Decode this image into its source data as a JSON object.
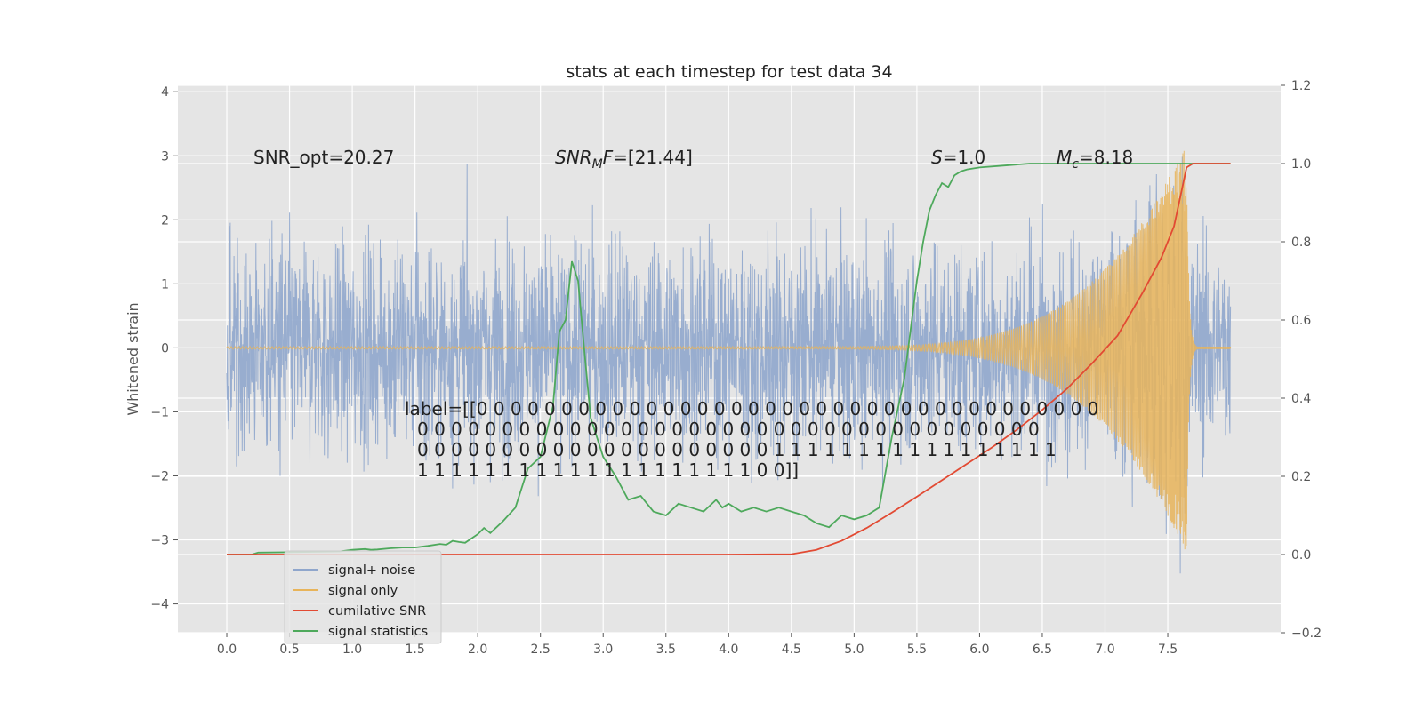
{
  "chart_data": {
    "type": "line",
    "title": "stats at each timestep for test data 34",
    "xlabel": "",
    "ylabel": "Whitened strain",
    "y2label": "",
    "xlim": [
      -0.39,
      8.4
    ],
    "ylim": [
      -4.45,
      4.1
    ],
    "y2lim": [
      -0.2,
      1.2
    ],
    "x_ticks": [
      "0.0",
      "0.5",
      "1.0",
      "1.5",
      "2.0",
      "2.5",
      "3.0",
      "3.5",
      "4.0",
      "4.5",
      "5.0",
      "5.5",
      "6.0",
      "6.5",
      "7.0",
      "7.5"
    ],
    "y_ticks": [
      "−4",
      "−3",
      "−2",
      "−1",
      "0",
      "1",
      "2",
      "3",
      "4"
    ],
    "y2_ticks": [
      "−0.2",
      "0.0",
      "0.2",
      "0.4",
      "0.6",
      "0.8",
      "1.0",
      "1.2"
    ],
    "grid": true,
    "legend_position": "lower-left",
    "annotations": {
      "snr_opt": "SNR_opt=20.27",
      "snr_mf_label": "SNR",
      "snr_mf_sub": "M",
      "snr_mf_label2": "F",
      "snr_mf_value": "=[21.44]",
      "s_label": "S",
      "s_value": "=1.0",
      "mc_label": "M",
      "mc_sub": "c",
      "mc_value": "=8.18",
      "label_lines": [
        "label=[[0 0 0 0 0 0 0 0 0 0 0 0 0 0 0 0 0 0 0 0 0 0 0 0 0 0 0 0 0 0 0 0 0 0 0 0 0",
        "0 0 0 0 0 0 0 0 0 0 0 0 0 0 0 0 0 0 0 0 0 0 0 0 0 0 0 0 0 0 0 0 0 0 0 0 0",
        "0 0 0 0 0 0 0 0 0 0 0 0 0 0 0 0 0 0 0 0 0 1 1 1 1 1 1 1 1 1 1 1 1 1 1 1 1 1",
        "1 1 1 1 1 1 1 1 1 1 1 1 1 1 1 1 1 1 1 1 0 0]]"
      ]
    },
    "series": [
      {
        "name": "signal+ noise",
        "color": "#8fa6cc",
        "axis": "left",
        "description_values": "whitened noisy strain, amplitude roughly within ±3.7"
      },
      {
        "name": "signal only",
        "color": "#e8b45a",
        "axis": "left",
        "chirp": {
          "start_x": 4.5,
          "merger_x": 7.65,
          "peak_amplitude": 3.2
        }
      },
      {
        "name": "cumilative SNR",
        "color": "#e24a33",
        "axis": "right",
        "x": [
          0.0,
          0.5,
          1.0,
          1.5,
          2.0,
          2.5,
          3.0,
          3.5,
          4.0,
          4.5,
          4.7,
          4.9,
          5.1,
          5.3,
          5.5,
          5.7,
          5.9,
          6.1,
          6.3,
          6.5,
          6.7,
          6.9,
          7.1,
          7.3,
          7.45,
          7.55,
          7.65,
          7.7,
          8.0
        ],
        "values": [
          0.0,
          0.0,
          0.0,
          0.0,
          0.0,
          0.0,
          0.0,
          0.0,
          0.0,
          0.001,
          0.012,
          0.035,
          0.068,
          0.107,
          0.148,
          0.19,
          0.232,
          0.274,
          0.32,
          0.37,
          0.425,
          0.49,
          0.56,
          0.67,
          0.76,
          0.84,
          0.99,
          1.0,
          1.0
        ]
      },
      {
        "name": "signal statistics",
        "color": "#4ea95c",
        "axis": "right",
        "x": [
          0.0,
          0.2,
          0.25,
          0.5,
          0.9,
          1.0,
          1.1,
          1.15,
          1.2,
          1.3,
          1.4,
          1.5,
          1.6,
          1.7,
          1.75,
          1.8,
          1.85,
          1.9,
          2.0,
          2.05,
          2.1,
          2.2,
          2.3,
          2.4,
          2.5,
          2.6,
          2.65,
          2.7,
          2.75,
          2.8,
          2.85,
          2.9,
          3.0,
          3.1,
          3.2,
          3.3,
          3.4,
          3.5,
          3.6,
          3.7,
          3.8,
          3.9,
          3.95,
          4.0,
          4.1,
          4.2,
          4.3,
          4.4,
          4.5,
          4.6,
          4.7,
          4.8,
          4.9,
          5.0,
          5.1,
          5.15,
          5.2,
          5.3,
          5.4,
          5.5,
          5.55,
          5.6,
          5.65,
          5.7,
          5.75,
          5.8,
          5.85,
          5.9,
          6.0,
          6.2,
          6.4,
          6.6,
          6.8,
          7.0,
          7.2,
          7.4,
          7.6,
          8.0
        ],
        "values": [
          0.0,
          0.0,
          0.005,
          0.006,
          0.008,
          0.012,
          0.014,
          0.012,
          0.013,
          0.016,
          0.018,
          0.018,
          0.022,
          0.027,
          0.025,
          0.035,
          0.032,
          0.03,
          0.052,
          0.068,
          0.055,
          0.085,
          0.12,
          0.22,
          0.25,
          0.38,
          0.57,
          0.6,
          0.75,
          0.7,
          0.52,
          0.35,
          0.25,
          0.2,
          0.14,
          0.15,
          0.11,
          0.1,
          0.13,
          0.12,
          0.11,
          0.14,
          0.12,
          0.13,
          0.11,
          0.12,
          0.11,
          0.12,
          0.11,
          0.1,
          0.08,
          0.07,
          0.1,
          0.09,
          0.1,
          0.11,
          0.12,
          0.3,
          0.45,
          0.7,
          0.8,
          0.88,
          0.92,
          0.95,
          0.94,
          0.97,
          0.98,
          0.985,
          0.99,
          0.995,
          1.0,
          1.0,
          1.0,
          1.0,
          1.0,
          1.0,
          1.0,
          1.0
        ]
      }
    ]
  }
}
